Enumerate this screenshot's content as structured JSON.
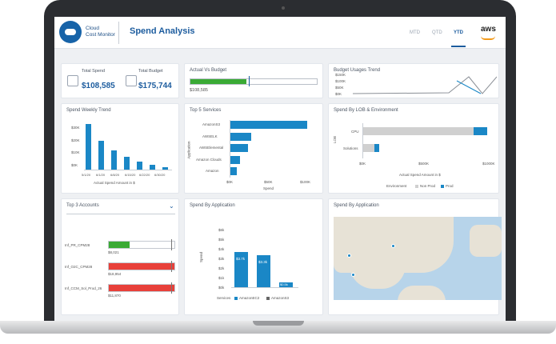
{
  "header": {
    "logo_line1": "Cloud",
    "logo_line2": "Cost Monitor",
    "page_title": "Spend Analysis",
    "tabs": [
      {
        "label": "MTD"
      },
      {
        "label": "QTD"
      },
      {
        "label": "YTD"
      }
    ],
    "active_tab": "YTD",
    "brand": "aws"
  },
  "kpis": {
    "total_spend_label": "Total Spend",
    "total_spend_value": "$108,585",
    "total_budget_label": "Total Budget",
    "total_budget_value": "$175,744"
  },
  "actual_vs_budget": {
    "title": "Actual Vs Budget",
    "value": "$108,585",
    "fill_pct": 44
  },
  "budget_usage": {
    "title": "Budget Usages Trend",
    "ticks": [
      "$150K",
      "$100K",
      "$50K",
      "$0K"
    ]
  },
  "weekly": {
    "title": "Spend Weekly Trend",
    "yticks": [
      "$30K",
      "$20K",
      "$10K",
      "$0K"
    ],
    "xlabel": "Actual Spend Amount in $",
    "xticks": [
      "5/1/20",
      "6/1/20",
      "6/8/20",
      "6/15/20",
      "6/22/20",
      "6/30/20"
    ]
  },
  "top5": {
    "title": "Top 5 Services",
    "ylabel": "Application",
    "rows": [
      "AmazonS3",
      "AWSELK",
      "AWSElemental",
      "Amazon Clouds",
      "Amazon"
    ],
    "xticks": [
      "$0K",
      "$50K",
      "$100K"
    ],
    "xlabel": "Spend"
  },
  "lob": {
    "title": "Spend By LOB & Environment",
    "ylabel": "LOB",
    "rows": [
      "CPU",
      "Solutions"
    ],
    "xticks": [
      "$0K",
      "$500K",
      "$1000K"
    ],
    "xlabel": "Actual Spend Amount in $",
    "legend_title": "Environment",
    "legend": [
      "Non Prod",
      "Prod"
    ]
  },
  "top3": {
    "title": "Top 3 Accounts",
    "accounts": [
      {
        "name": "Inf_PR_CPM28",
        "value": "$8,021"
      },
      {
        "name": "Inf_O2C_CPM28",
        "value": "$18,954"
      },
      {
        "name": "Inf_CCM_Sol_Prod_26",
        "value": "$11,870"
      }
    ]
  },
  "by_app": {
    "title": "Spend By Application",
    "yticks": [
      "$6k",
      "$5k",
      "$4k",
      "$3k",
      "$2k",
      "$1k",
      "$0k"
    ],
    "ylabel": "Spend",
    "bars": [
      "$3.7k",
      "$3.3k",
      "$0.5k"
    ],
    "legend_title": "Services",
    "legend": [
      "AmazonEC2",
      "AmazonS3"
    ]
  },
  "map": {
    "title": "Spend By Application"
  },
  "colors": {
    "accent": "#1c5c9e",
    "bar": "#1a87c6",
    "green": "#3aaa35",
    "red": "#e8403a"
  }
}
